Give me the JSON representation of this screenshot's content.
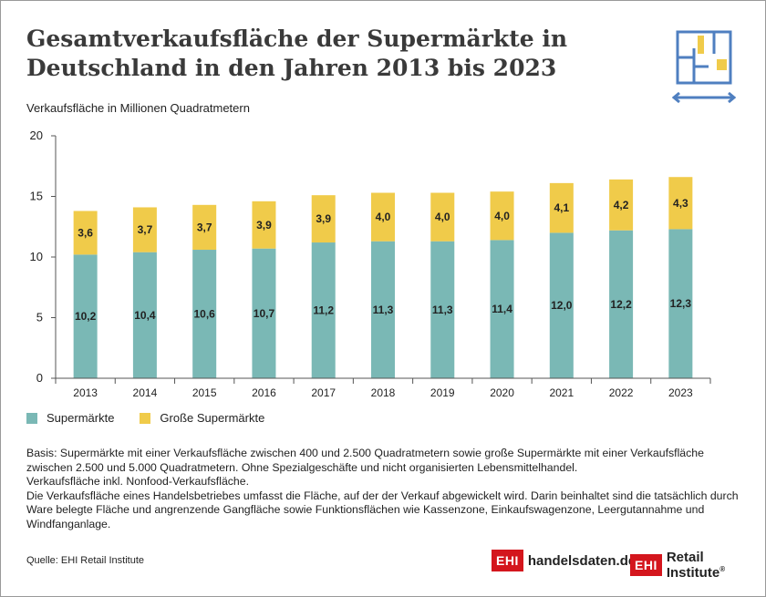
{
  "title": "Gesamtverkaufsfläche der Supermärkte in Deutschland in den Jahren 2013 bis 2023",
  "colors": {
    "supermarkt": "#7ab8b5",
    "gross": "#f0cb4a",
    "axis": "#555555",
    "title": "#3a3a3a",
    "brand": "#d4161d"
  },
  "icons": {
    "header": "floorplan-icon"
  },
  "chart_data": {
    "type": "bar",
    "stacked": true,
    "title": "Gesamtverkaufsfläche der Supermärkte in Deutschland in den Jahren 2013 bis 2023",
    "ylabel": "Verkaufsfläche in Millionen Quadratmetern",
    "xlabel": "",
    "ylim": [
      0,
      20
    ],
    "yticks": [
      0,
      5,
      10,
      15,
      20
    ],
    "categories": [
      "2013",
      "2014",
      "2015",
      "2016",
      "2017",
      "2018",
      "2019",
      "2020",
      "2021",
      "2022",
      "2023"
    ],
    "series": [
      {
        "name": "Supermärkte",
        "values": [
          10.2,
          10.4,
          10.6,
          10.7,
          11.2,
          11.3,
          11.3,
          11.4,
          12.0,
          12.2,
          12.3
        ],
        "labels": [
          "10,2",
          "10,4",
          "10,6",
          "10,7",
          "11,2",
          "11,3",
          "11,3",
          "11,4",
          "12,0",
          "12,2",
          "12,3"
        ]
      },
      {
        "name": "Große Supermärkte",
        "values": [
          3.6,
          3.7,
          3.7,
          3.9,
          3.9,
          4.0,
          4.0,
          4.0,
          4.1,
          4.2,
          4.3
        ],
        "labels": [
          "3,6",
          "3,7",
          "3,7",
          "3,9",
          "3,9",
          "4,0",
          "4,0",
          "4,0",
          "4,1",
          "4,2",
          "4,3"
        ]
      }
    ],
    "grid": false,
    "legend": "bottom-left"
  },
  "legend": {
    "item1": "Supermärkte",
    "item2": "Große Supermärkte"
  },
  "notes": {
    "p1": "Basis: Supermärkte mit einer Verkaufsfläche zwischen 400 und 2.500 Quadratmetern sowie große Supermärkte mit einer Verkaufsfläche zwischen 2.500 und 5.000 Quadratmetern. Ohne Spezialgeschäfte und nicht organisierten Lebensmittelhandel.",
    "p2": "Verkaufsfläche inkl. Nonfood-Verkaufsfläche.",
    "p3": "Die Verkaufsfläche eines Handelsbetriebes umfasst die Fläche, auf der der Verkauf abgewickelt wird. Darin beinhaltet sind die tatsächlich durch Ware belegte Fläche und angrenzende Gangfläche sowie Funktionsflächen wie Kassenzone, Einkaufswagenzone, Leergutannahme und Windfanganlage."
  },
  "source": "Quelle: EHI Retail Institute",
  "brand1": {
    "box": "EHI",
    "text": "handelsdaten.de"
  },
  "brand2": {
    "box": "EHI",
    "text": "Retail Institute",
    "reg": "®"
  }
}
